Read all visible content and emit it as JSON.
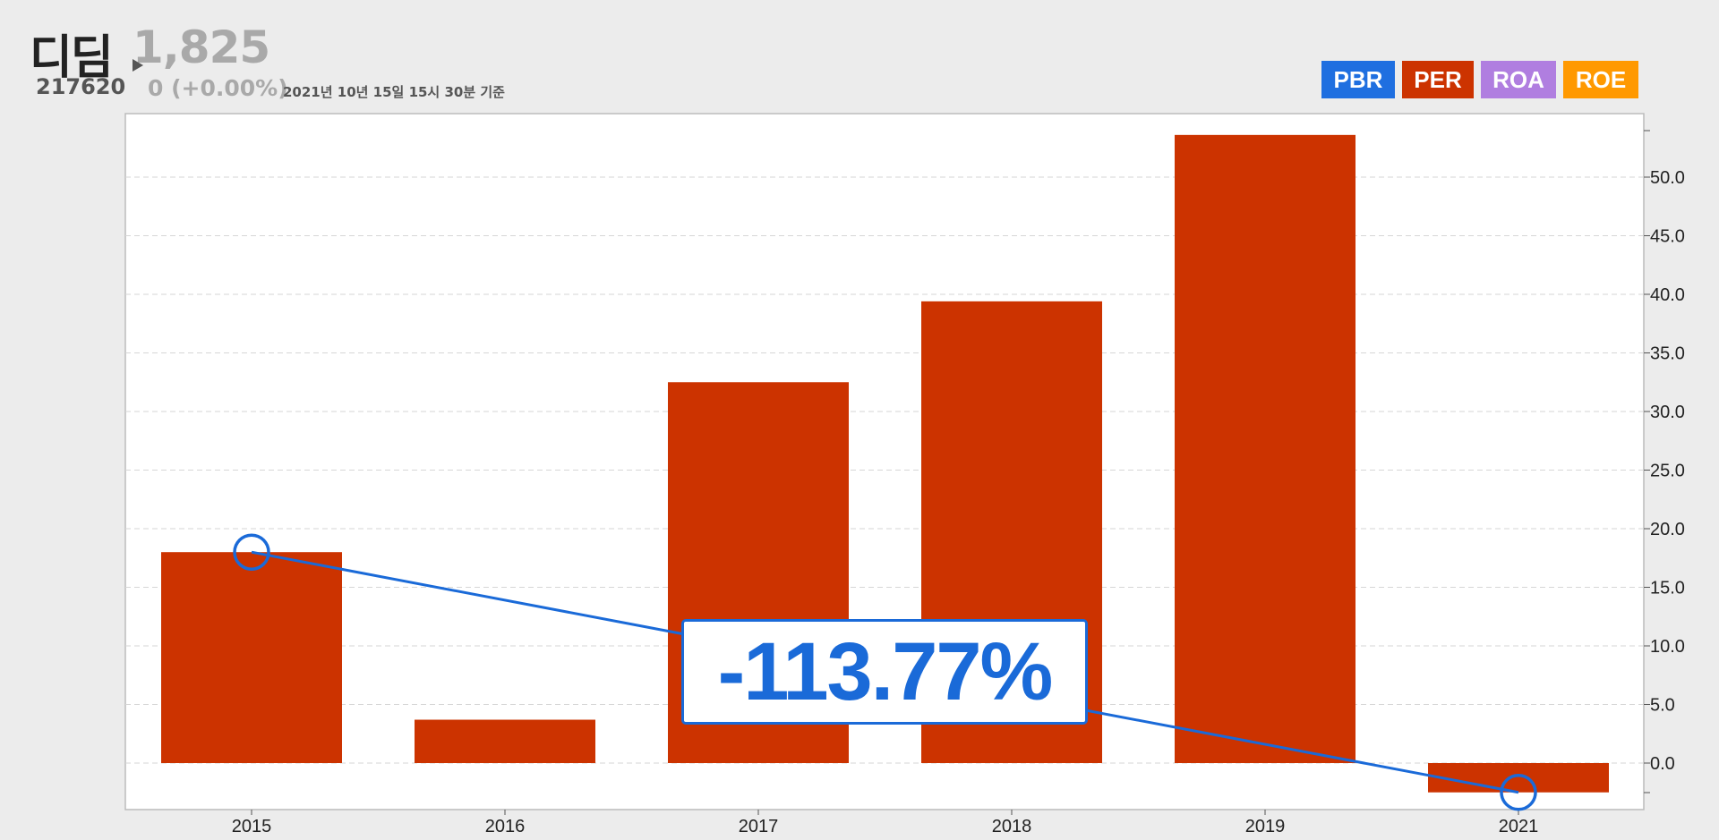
{
  "header": {
    "name": "디딤",
    "price": "1,825",
    "code": "217620",
    "change": "0  (+0.00%)",
    "timestamp": "2021년 10년 15일 15시 30분 기준"
  },
  "legend": [
    {
      "label": "PBR",
      "color": "#1f6fe0"
    },
    {
      "label": "PER",
      "color": "#cc3300"
    },
    {
      "label": "ROA",
      "color": "#b07ee0"
    },
    {
      "label": "ROE",
      "color": "#ff9900"
    }
  ],
  "callout": {
    "text": "-113.77%"
  },
  "chart_data": {
    "type": "bar",
    "series": [
      {
        "values": [
          18.0,
          3.7,
          32.5,
          39.4,
          53.6,
          -2.5
        ],
        "color": "#cc3300"
      }
    ],
    "categories": [
      "2015",
      "2016",
      "2017",
      "2018",
      "2019",
      "2021"
    ],
    "ylim": [
      -4,
      54
    ],
    "yticks": [
      0,
      5,
      10,
      15,
      20,
      25,
      30,
      35,
      40,
      45,
      50
    ],
    "ytick_labels": [
      "0.0",
      "5.0",
      "10.0",
      "15.0",
      "20.0",
      "25.0",
      "30.0",
      "35.0",
      "40.0",
      "45.0",
      "50.0"
    ],
    "grid": true,
    "trend_line": {
      "from": {
        "category": "2015",
        "value": 18.0
      },
      "to": {
        "category": "2021",
        "value": -2.5
      },
      "color": "#1a6ad8"
    }
  }
}
